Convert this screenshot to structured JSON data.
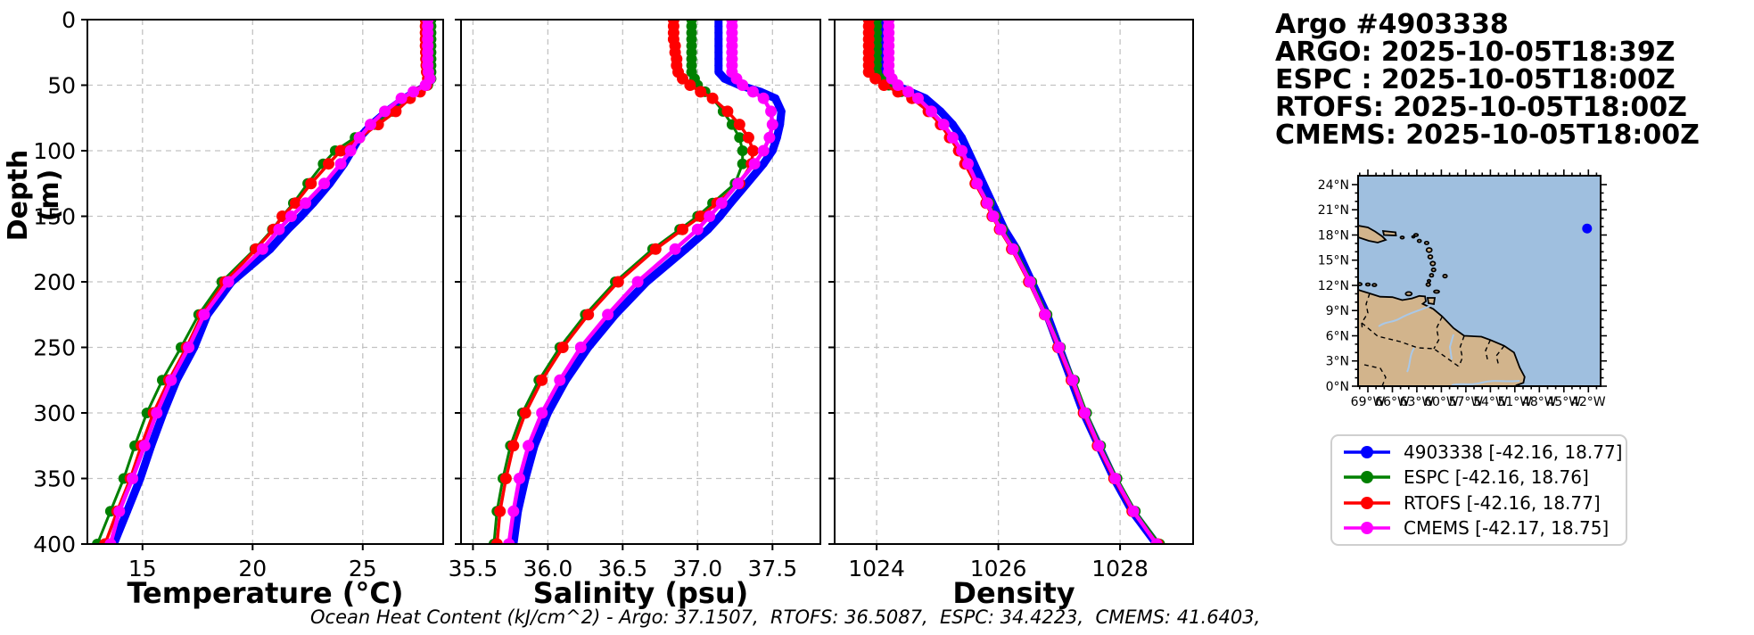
{
  "title_block": {
    "lines": [
      "Argo #4903338",
      "ARGO: 2025-10-05T18:39Z",
      "ESPC : 2025-10-05T18:00Z",
      "RTOFS: 2025-10-05T18:00Z",
      "CMEMS: 2025-10-05T18:00Z"
    ]
  },
  "footer_note": "Ocean Heat Content (kJ/cm^2) - Argo: 37.1507,  RTOFS: 36.5087,  ESPC: 34.4223,  CMEMS: 41.6403,",
  "ocean_heat_content": {
    "Argo": 37.1507,
    "RTOFS": 36.5087,
    "ESPC": 34.4223,
    "CMEMS": 41.6403
  },
  "legend": {
    "items": [
      {
        "id": "argo",
        "label": "4903338 [-42.16, 18.77]",
        "color": "#0000ff"
      },
      {
        "id": "espc",
        "label": "ESPC [-42.16, 18.76]",
        "color": "#008000"
      },
      {
        "id": "rtofs",
        "label": "RTOFS [-42.16, 18.77]",
        "color": "#ff0000"
      },
      {
        "id": "cmems",
        "label": "CMEMS [-42.17, 18.75]",
        "color": "#ff00ff"
      }
    ]
  },
  "map": {
    "ocean_color": "#9fbfdf",
    "land_color": "#d2b48c",
    "lon_range": [
      -70.2,
      -40.5
    ],
    "lat_range": [
      0,
      25.06
    ],
    "lat_ticks": [
      {
        "value": 24,
        "label": "24°N"
      },
      {
        "value": 21,
        "label": "21°N"
      },
      {
        "value": 18,
        "label": "18°N"
      },
      {
        "value": 15,
        "label": "15°N"
      },
      {
        "value": 12,
        "label": "12°N"
      },
      {
        "value": 9,
        "label": "9°N"
      },
      {
        "value": 6,
        "label": "6°N"
      },
      {
        "value": 3,
        "label": "3°N"
      },
      {
        "value": 0,
        "label": "0°N"
      }
    ],
    "lon_ticks": [
      {
        "value": -69,
        "label": "69°W"
      },
      {
        "value": -66,
        "label": "66°W"
      },
      {
        "value": -63,
        "label": "63°W"
      },
      {
        "value": -60,
        "label": "60°W"
      },
      {
        "value": -57,
        "label": "57°W"
      },
      {
        "value": -54,
        "label": "54°W"
      },
      {
        "value": -51,
        "label": "51°W"
      },
      {
        "value": -48,
        "label": "48°W"
      },
      {
        "value": -45,
        "label": "45°W"
      },
      {
        "value": -42,
        "label": "42°W"
      }
    ],
    "float_marker": {
      "lon": -42.16,
      "lat": 18.77,
      "color": "#0000ff"
    }
  },
  "chart_data": {
    "type": "line",
    "description": "Vertical ocean profiles (Temperature, Salinity, Density) vs Depth for Argo float 4903338 and three model analyses",
    "ylabel": "Depth (m)",
    "ylim": [
      0,
      400
    ],
    "y_inverted": true,
    "grid": true,
    "yticks": [
      {
        "value": 0,
        "label": "0"
      },
      {
        "value": 50,
        "label": "50"
      },
      {
        "value": 100,
        "label": "100"
      },
      {
        "value": 150,
        "label": "150"
      },
      {
        "value": 200,
        "label": "200"
      },
      {
        "value": 250,
        "label": "250"
      },
      {
        "value": 300,
        "label": "300"
      },
      {
        "value": 350,
        "label": "350"
      },
      {
        "value": 400,
        "label": "400"
      }
    ],
    "depths": [
      0,
      5,
      10,
      15,
      20,
      25,
      30,
      35,
      40,
      45,
      50,
      55,
      60,
      70,
      80,
      90,
      100,
      110,
      125,
      140,
      150,
      160,
      175,
      200,
      225,
      250,
      275,
      300,
      325,
      350,
      375,
      400
    ],
    "panels": [
      {
        "key": "temperature",
        "xlabel": "Temperature (°C)",
        "xlim": [
          12.5,
          28.65
        ],
        "show_depth_labels": true,
        "xticks": [
          {
            "value": 15,
            "label": "15"
          },
          {
            "value": 20,
            "label": "20"
          },
          {
            "value": 25,
            "label": "25"
          }
        ]
      },
      {
        "key": "salinity",
        "xlabel": "Salinity (psu)",
        "xlim": [
          35.42,
          37.82
        ],
        "show_depth_labels": false,
        "xticks": [
          {
            "value": 35.5,
            "label": "35.5"
          },
          {
            "value": 36.0,
            "label": "36.0"
          },
          {
            "value": 36.5,
            "label": "36.5"
          },
          {
            "value": 37.0,
            "label": "37.0"
          },
          {
            "value": 37.5,
            "label": "37.5"
          }
        ]
      },
      {
        "key": "density",
        "xlabel": "Density",
        "xlim": [
          1023.31,
          1029.2
        ],
        "show_depth_labels": false,
        "xticks": [
          {
            "value": 1024,
            "label": "1024"
          },
          {
            "value": 1026,
            "label": "1026"
          },
          {
            "value": 1028,
            "label": "1028"
          }
        ]
      }
    ],
    "series": [
      {
        "id": "argo",
        "name": "4903338",
        "color": "#0000ff",
        "temperature": [
          28.0,
          28.0,
          28.0,
          28.0,
          28.0,
          28.0,
          28.0,
          28.02,
          28.05,
          28.15,
          27.95,
          27.4,
          26.9,
          26.1,
          25.4,
          24.85,
          24.5,
          24.15,
          23.5,
          22.75,
          22.2,
          21.6,
          20.8,
          19.05,
          17.95,
          17.35,
          16.55,
          15.95,
          15.4,
          14.9,
          14.3,
          13.7
        ],
        "salinity": [
          37.14,
          37.14,
          37.14,
          37.14,
          37.14,
          37.14,
          37.14,
          37.14,
          37.14,
          37.18,
          37.28,
          37.42,
          37.52,
          37.56,
          37.55,
          37.53,
          37.5,
          37.44,
          37.33,
          37.22,
          37.15,
          37.07,
          36.92,
          36.66,
          36.45,
          36.27,
          36.12,
          36.0,
          35.91,
          35.85,
          35.8,
          35.77
        ],
        "density": [
          1024.08,
          1024.08,
          1024.08,
          1024.08,
          1024.08,
          1024.08,
          1024.08,
          1024.08,
          1024.08,
          1024.15,
          1024.3,
          1024.55,
          1024.8,
          1025.05,
          1025.25,
          1025.4,
          1025.5,
          1025.6,
          1025.75,
          1025.9,
          1026.0,
          1026.1,
          1026.3,
          1026.55,
          1026.8,
          1027.0,
          1027.2,
          1027.4,
          1027.65,
          1027.9,
          1028.2,
          1028.6
        ]
      },
      {
        "id": "espc",
        "name": "ESPC",
        "color": "#008000",
        "temperature": [
          28.1,
          28.1,
          28.1,
          28.1,
          28.1,
          28.1,
          28.1,
          28.1,
          28.1,
          28.1,
          27.95,
          27.55,
          27.1,
          26.35,
          25.55,
          24.65,
          23.75,
          23.2,
          22.5,
          21.85,
          21.35,
          20.9,
          20.1,
          18.6,
          17.55,
          16.75,
          15.9,
          15.2,
          14.65,
          14.15,
          13.55,
          12.95
        ],
        "salinity": [
          36.96,
          36.96,
          36.96,
          36.96,
          36.96,
          36.96,
          36.96,
          36.96,
          36.96,
          36.98,
          37.0,
          37.05,
          37.1,
          37.17,
          37.23,
          37.28,
          37.3,
          37.3,
          37.25,
          37.1,
          37.0,
          36.88,
          36.7,
          36.45,
          36.25,
          36.08,
          35.94,
          35.83,
          35.75,
          35.7,
          35.66,
          35.64
        ],
        "density": [
          1024.0,
          1024.0,
          1024.0,
          1024.0,
          1024.0,
          1024.0,
          1024.0,
          1024.0,
          1024.0,
          1024.08,
          1024.2,
          1024.4,
          1024.6,
          1024.85,
          1025.05,
          1025.22,
          1025.38,
          1025.5,
          1025.65,
          1025.85,
          1025.95,
          1026.07,
          1026.27,
          1026.55,
          1026.8,
          1027.02,
          1027.25,
          1027.45,
          1027.68,
          1027.95,
          1028.25,
          1028.65
        ]
      },
      {
        "id": "rtofs",
        "name": "RTOFS",
        "color": "#ff0000",
        "temperature": [
          27.85,
          27.85,
          27.85,
          27.85,
          27.85,
          27.86,
          27.87,
          27.88,
          27.9,
          27.95,
          27.9,
          27.6,
          27.15,
          26.5,
          25.7,
          24.85,
          24.0,
          23.45,
          22.65,
          21.95,
          21.35,
          20.95,
          20.15,
          18.75,
          17.7,
          17.0,
          16.2,
          15.5,
          14.95,
          14.45,
          13.85,
          13.3
        ],
        "salinity": [
          36.84,
          36.84,
          36.84,
          36.84,
          36.85,
          36.85,
          36.86,
          36.86,
          36.87,
          36.9,
          36.95,
          37.02,
          37.1,
          37.2,
          37.28,
          37.34,
          37.37,
          37.36,
          37.28,
          37.13,
          37.02,
          36.9,
          36.72,
          36.47,
          36.27,
          36.1,
          35.96,
          35.85,
          35.77,
          35.72,
          35.68,
          35.66
        ],
        "density": [
          1023.87,
          1023.87,
          1023.87,
          1023.87,
          1023.87,
          1023.87,
          1023.87,
          1023.87,
          1023.87,
          1023.98,
          1024.12,
          1024.35,
          1024.58,
          1024.85,
          1025.05,
          1025.2,
          1025.35,
          1025.45,
          1025.62,
          1025.8,
          1025.9,
          1026.02,
          1026.22,
          1026.5,
          1026.76,
          1026.98,
          1027.2,
          1027.4,
          1027.63,
          1027.9,
          1028.2,
          1028.62
        ]
      },
      {
        "id": "cmems",
        "name": "CMEMS",
        "color": "#ff00ff",
        "temperature": [
          27.95,
          27.95,
          27.95,
          27.95,
          27.95,
          27.95,
          27.95,
          27.95,
          27.98,
          28.05,
          27.85,
          27.3,
          26.75,
          26.0,
          25.35,
          24.85,
          24.45,
          24.0,
          23.25,
          22.4,
          21.75,
          21.2,
          20.45,
          18.9,
          17.8,
          17.1,
          16.3,
          15.65,
          15.1,
          14.55,
          13.95,
          13.55
        ],
        "salinity": [
          37.23,
          37.23,
          37.23,
          37.23,
          37.23,
          37.23,
          37.23,
          37.23,
          37.23,
          37.26,
          37.3,
          37.37,
          37.44,
          37.49,
          37.5,
          37.48,
          37.44,
          37.38,
          37.27,
          37.16,
          37.08,
          37.0,
          36.85,
          36.6,
          36.4,
          36.22,
          36.08,
          35.96,
          35.87,
          35.81,
          35.77,
          35.74
        ],
        "density": [
          1024.2,
          1024.2,
          1024.2,
          1024.2,
          1024.2,
          1024.2,
          1024.2,
          1024.2,
          1024.2,
          1024.25,
          1024.35,
          1024.52,
          1024.68,
          1024.9,
          1025.1,
          1025.25,
          1025.4,
          1025.5,
          1025.65,
          1025.82,
          1025.92,
          1026.04,
          1026.24,
          1026.52,
          1026.77,
          1027.0,
          1027.22,
          1027.42,
          1027.65,
          1027.92,
          1028.22,
          1028.6
        ]
      }
    ]
  }
}
